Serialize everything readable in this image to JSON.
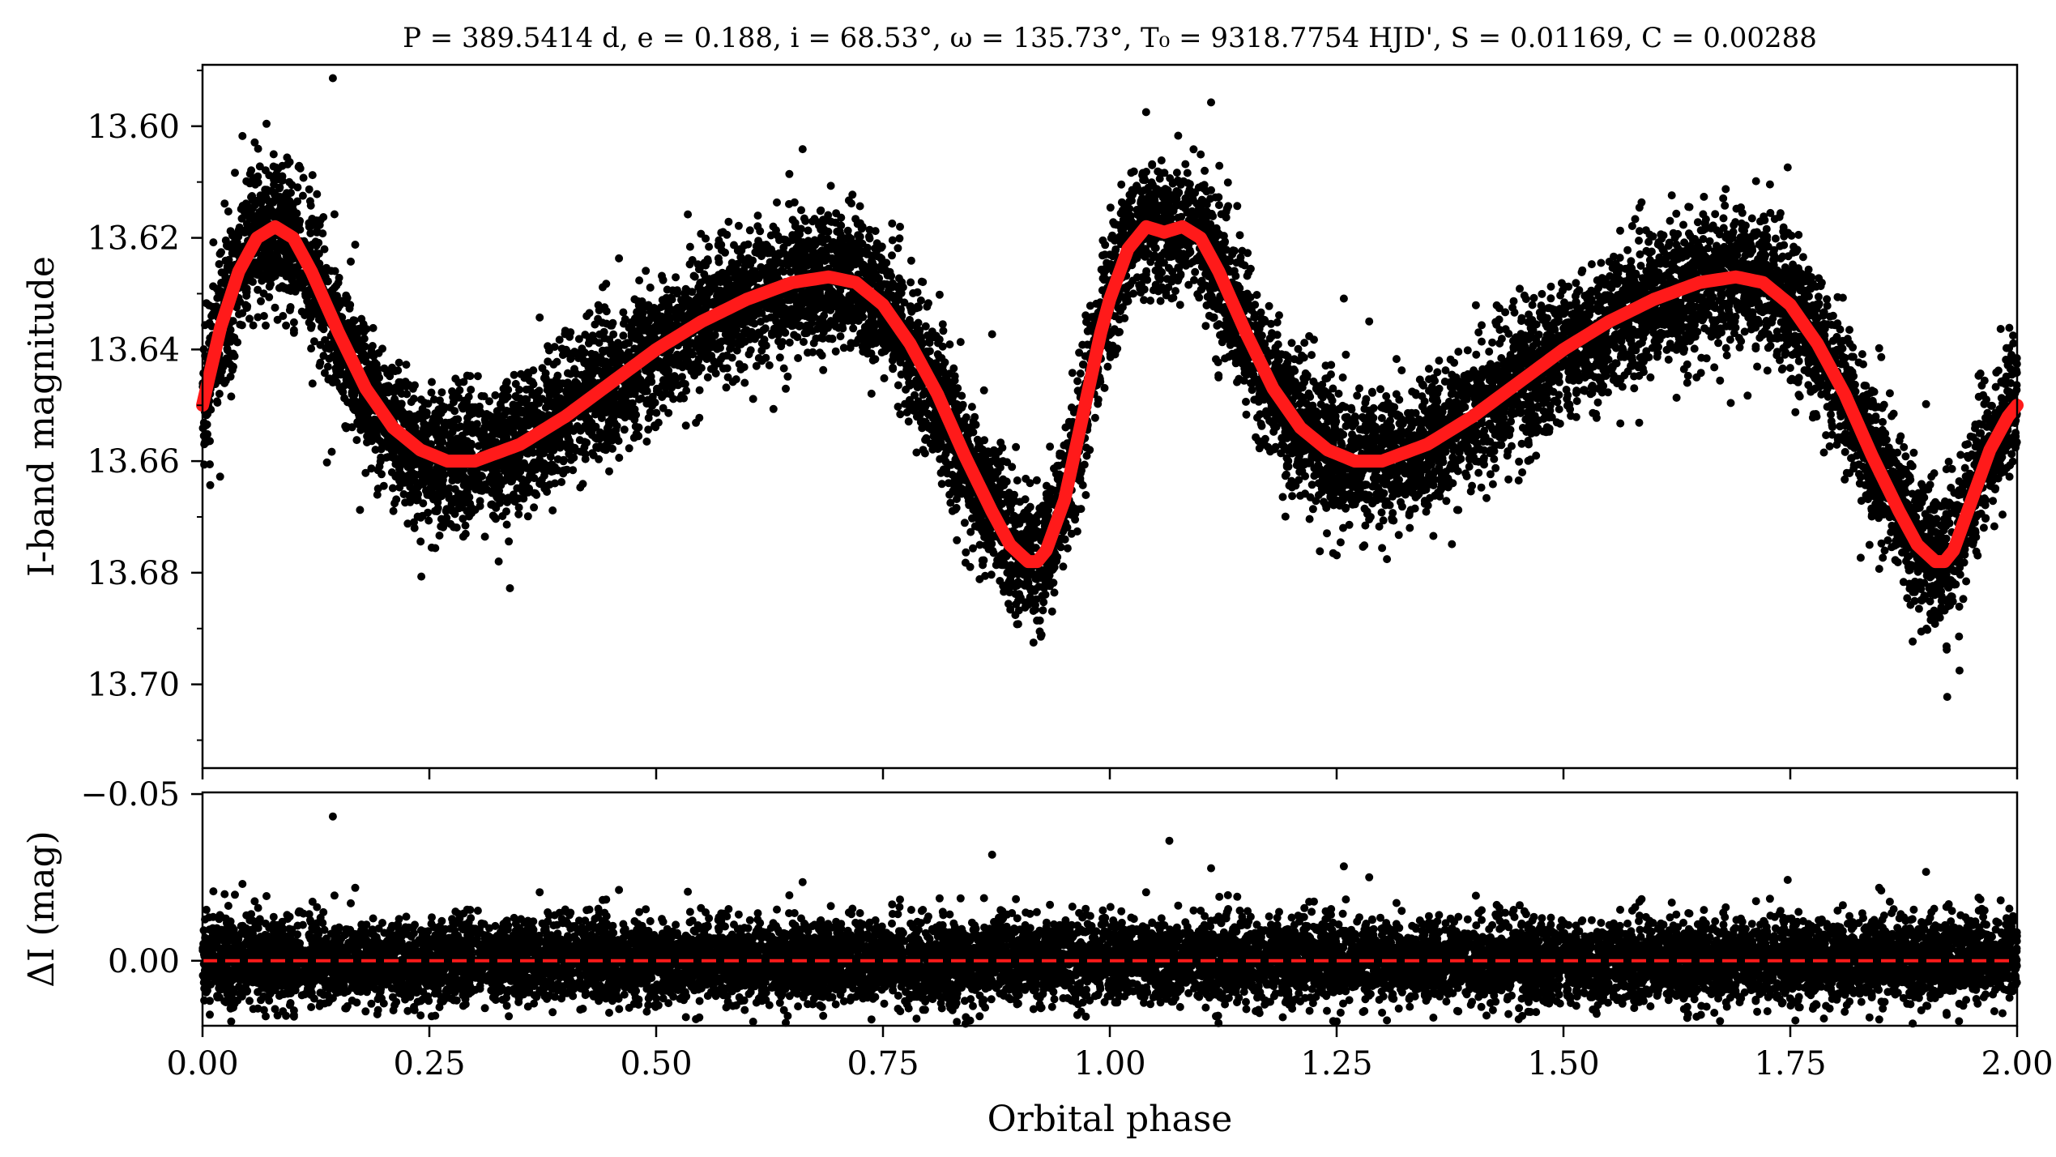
{
  "chart_data": [
    {
      "panel": "top",
      "type": "scatter",
      "title": "P = 389.5414 d, e = 0.188, i = 68.53°, ω = 135.73°, T₀ = 9318.7754 HJD', S = 0.01169, C = 0.00288",
      "xlabel": "",
      "ylabel": "I-band magnitude",
      "xlim": [
        0.0,
        2.0
      ],
      "ylim": [
        13.715,
        13.589
      ],
      "y_inverted": true,
      "yticks": [
        "13.60",
        "13.62",
        "13.64",
        "13.66",
        "13.68",
        "13.70"
      ],
      "ytick_values": [
        13.6,
        13.62,
        13.64,
        13.66,
        13.68,
        13.7
      ],
      "xticks": [
        0.0,
        0.25,
        0.5,
        0.75,
        1.0,
        1.25,
        1.5,
        1.75,
        2.0
      ],
      "grid": false,
      "legend": "none",
      "series": [
        {
          "kind": "observations",
          "style": "points",
          "color": "#000000",
          "approx_point_count": 12000,
          "scatter_sigma_mag": 0.006,
          "note_values": "phase-folded photometry scattered around model curve"
        },
        {
          "kind": "model",
          "style": "line",
          "color": "#ff1a1a",
          "x": [
            0.0,
            0.02,
            0.04,
            0.06,
            0.08,
            0.1,
            0.12,
            0.15,
            0.18,
            0.21,
            0.24,
            0.27,
            0.3,
            0.35,
            0.4,
            0.45,
            0.5,
            0.55,
            0.6,
            0.65,
            0.69,
            0.72,
            0.75,
            0.78,
            0.81,
            0.84,
            0.87,
            0.89,
            0.91,
            0.92,
            0.93,
            0.95,
            0.97,
            0.99,
            1.0,
            1.02,
            1.04,
            1.06,
            1.08,
            1.1,
            1.12,
            1.15,
            1.18,
            1.21,
            1.24,
            1.27,
            1.3,
            1.35,
            1.4,
            1.45,
            1.5,
            1.55,
            1.6,
            1.65,
            1.69,
            1.72,
            1.75,
            1.78,
            1.81,
            1.84,
            1.87,
            1.89,
            1.91,
            1.92,
            1.93,
            1.95,
            1.97,
            1.99,
            2.0
          ],
          "y": [
            13.65,
            13.636,
            13.626,
            13.62,
            13.618,
            13.62,
            13.626,
            13.637,
            13.647,
            13.654,
            13.658,
            13.66,
            13.66,
            13.657,
            13.652,
            13.646,
            13.64,
            13.635,
            13.631,
            13.628,
            13.627,
            13.628,
            13.632,
            13.639,
            13.648,
            13.659,
            13.669,
            13.675,
            13.678,
            13.678,
            13.676,
            13.667,
            13.652,
            13.637,
            13.631,
            13.622,
            13.618,
            13.619,
            13.618,
            13.62,
            13.626,
            13.637,
            13.647,
            13.654,
            13.658,
            13.66,
            13.66,
            13.657,
            13.652,
            13.646,
            13.64,
            13.635,
            13.631,
            13.628,
            13.627,
            13.628,
            13.632,
            13.639,
            13.648,
            13.659,
            13.669,
            13.675,
            13.678,
            13.678,
            13.676,
            13.667,
            13.658,
            13.652,
            13.65
          ]
        }
      ]
    },
    {
      "panel": "bottom",
      "type": "scatter",
      "title": "",
      "xlabel": "Orbital phase",
      "ylabel": "ΔI (mag)",
      "xlim": [
        0.0,
        2.0
      ],
      "ylim": [
        0.0195,
        -0.0505
      ],
      "y_inverted": true,
      "yticks": [
        "−0.05",
        "0.00"
      ],
      "ytick_values": [
        -0.05,
        0.0
      ],
      "xticks": [
        "0.00",
        "0.25",
        "0.50",
        "0.75",
        "1.00",
        "1.25",
        "1.50",
        "1.75",
        "2.00"
      ],
      "xtick_values": [
        0.0,
        0.25,
        0.5,
        0.75,
        1.0,
        1.25,
        1.5,
        1.75,
        2.0
      ],
      "grid": false,
      "legend": "none",
      "series": [
        {
          "kind": "residuals",
          "style": "points",
          "color": "#000000",
          "approx_point_count": 12000,
          "scatter_sigma_mag": 0.006
        },
        {
          "kind": "zero-line",
          "style": "dashed",
          "color": "#ff1a1a",
          "y": 0.0
        }
      ]
    }
  ]
}
